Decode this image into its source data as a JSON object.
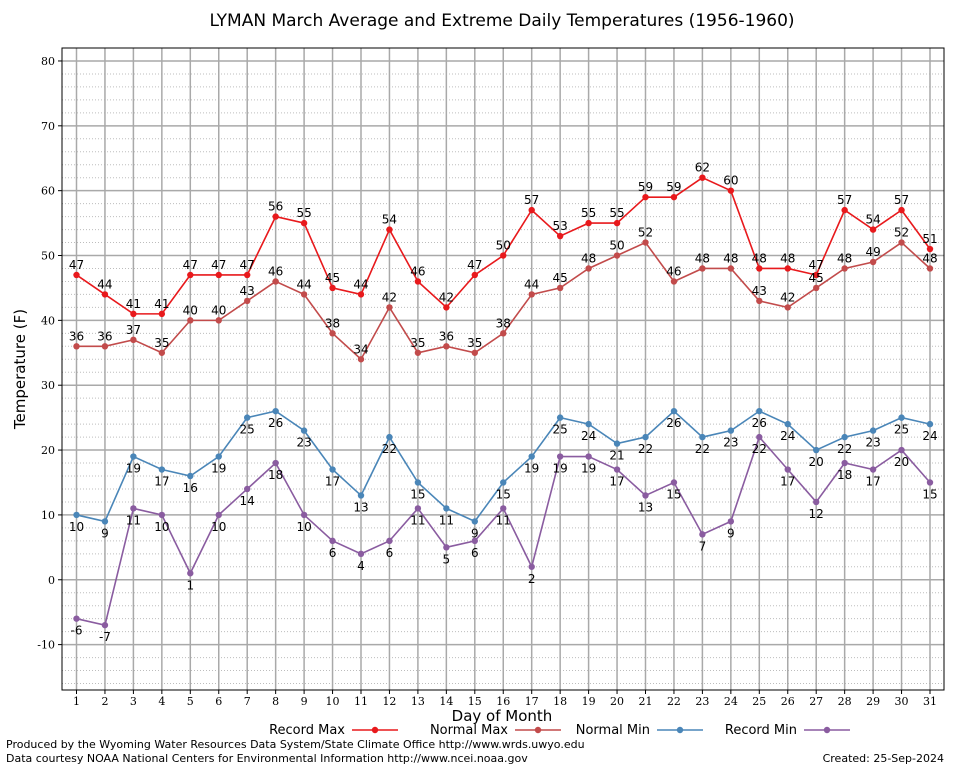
{
  "chart_data": {
    "type": "line",
    "title": "LYMAN March Average and Extreme Daily Temperatures (1956-1960)",
    "xlabel": "Day of Month",
    "ylabel": "Temperature (F)",
    "ylim": [
      -17,
      82
    ],
    "yticks": [
      -10,
      0,
      10,
      20,
      30,
      40,
      50,
      60,
      70,
      80
    ],
    "x": [
      1,
      2,
      3,
      4,
      5,
      6,
      7,
      8,
      9,
      10,
      11,
      12,
      13,
      14,
      15,
      16,
      17,
      18,
      19,
      20,
      21,
      22,
      23,
      24,
      25,
      26,
      27,
      28,
      29,
      30,
      31
    ],
    "grid": true,
    "legend_position": "bottom",
    "series": [
      {
        "name": "Record Max",
        "color": "#e8191c",
        "label_position": "above",
        "values": [
          47,
          44,
          41,
          41,
          47,
          47,
          47,
          56,
          55,
          45,
          44,
          54,
          46,
          42,
          47,
          50,
          57,
          53,
          55,
          55,
          59,
          59,
          62,
          60,
          48,
          48,
          47,
          57,
          54,
          57,
          51
        ]
      },
      {
        "name": "Normal Max",
        "color": "#c24b4b",
        "label_position": "above",
        "values": [
          36,
          36,
          37,
          35,
          40,
          40,
          43,
          46,
          44,
          38,
          34,
          42,
          35,
          36,
          35,
          38,
          44,
          45,
          48,
          50,
          52,
          46,
          48,
          48,
          43,
          42,
          45,
          48,
          49,
          52,
          48
        ]
      },
      {
        "name": "Normal Min",
        "color": "#4a86b8",
        "label_position": "below",
        "values": [
          10,
          9,
          19,
          17,
          16,
          19,
          25,
          26,
          23,
          17,
          13,
          22,
          15,
          11,
          9,
          15,
          19,
          25,
          24,
          21,
          22,
          26,
          22,
          23,
          26,
          24,
          20,
          22,
          23,
          25,
          24
        ]
      },
      {
        "name": "Record Min",
        "color": "#8a5ca0",
        "label_position": "below",
        "values": [
          -6,
          -7,
          11,
          10,
          1,
          10,
          14,
          18,
          10,
          6,
          4,
          6,
          11,
          5,
          6,
          11,
          2,
          19,
          19,
          17,
          13,
          15,
          7,
          9,
          22,
          17,
          12,
          18,
          17,
          20,
          15
        ]
      }
    ]
  },
  "footer": {
    "produced_by": "Produced by the Wyoming Water Resources Data System/State Climate Office http://www.wrds.uwyo.edu",
    "data_courtesy": "Data courtesy NOAA National Centers for Environmental Information http://www.ncei.noaa.gov",
    "created": "Created:  25-Sep-2024"
  }
}
